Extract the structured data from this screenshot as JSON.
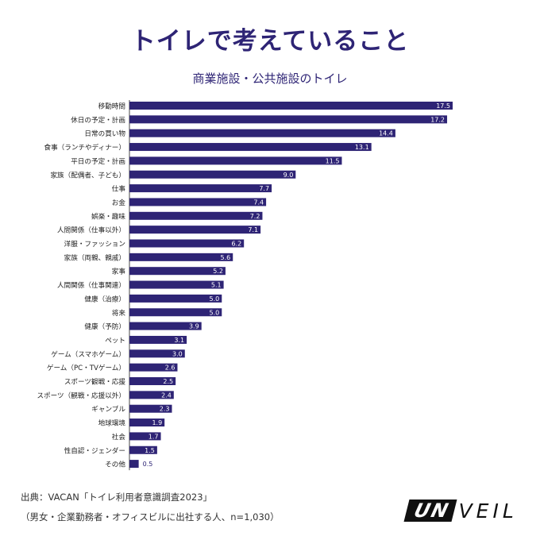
{
  "header": {
    "title": "トイレで考えていること",
    "subtitle": "商業施設・公共施設のトイレ"
  },
  "footer": {
    "source": "出典：VACAN「トイレ利用者意識調査2023」",
    "note": "（男女・企業勤務者・オフィスビルに出社する人、n=1,030）",
    "logo_left": "UN",
    "logo_right": "VEIL"
  },
  "colors": {
    "bar": "#2e2475",
    "title": "#2e2475"
  },
  "chart_data": {
    "type": "bar",
    "orientation": "horizontal",
    "title": "商業施設・公共施設のトイレ",
    "xlim": [
      0,
      17.5
    ],
    "categories": [
      "移動時間",
      "休日の予定・計画",
      "日常の買い物",
      "食事（ランチやディナー）",
      "平日の予定・計画",
      "家族（配偶者、子ども）",
      "仕事",
      "お金",
      "娯楽・趣味",
      "人間関係（仕事以外）",
      "洋服・ファッション",
      "家族（両親、親戚）",
      "家事",
      "人間関係（仕事関連）",
      "健康（治療）",
      "将来",
      "健康（予防）",
      "ペット",
      "ゲーム（スマホゲーム）",
      "ゲーム（PC・TVゲーム）",
      "スポーツ観戦・応援",
      "スポーツ（観戦・応援以外）",
      "ギャンブル",
      "地球環境",
      "社会",
      "性自認・ジェンダー",
      "その他"
    ],
    "values": [
      17.5,
      17.2,
      14.4,
      13.1,
      11.5,
      9.0,
      7.7,
      7.4,
      7.2,
      7.1,
      6.2,
      5.6,
      5.2,
      5.1,
      5.0,
      5.0,
      3.9,
      3.1,
      3.0,
      2.6,
      2.5,
      2.4,
      2.3,
      1.9,
      1.7,
      1.5,
      0.5
    ],
    "value_labels": [
      "17.5",
      "17.2",
      "14.4",
      "13.1",
      "11.5",
      "9.0",
      "7.7",
      "7.4",
      "7.2",
      "7.1",
      "6.2",
      "5.6",
      "5.2",
      "5.1",
      "5.0",
      "5.0",
      "3.9",
      "3.1",
      "3.0",
      "2.6",
      "2.5",
      "2.4",
      "2.3",
      "1.9",
      "1.7",
      "1.5",
      "0.5"
    ],
    "legend": "none",
    "grid": false
  }
}
